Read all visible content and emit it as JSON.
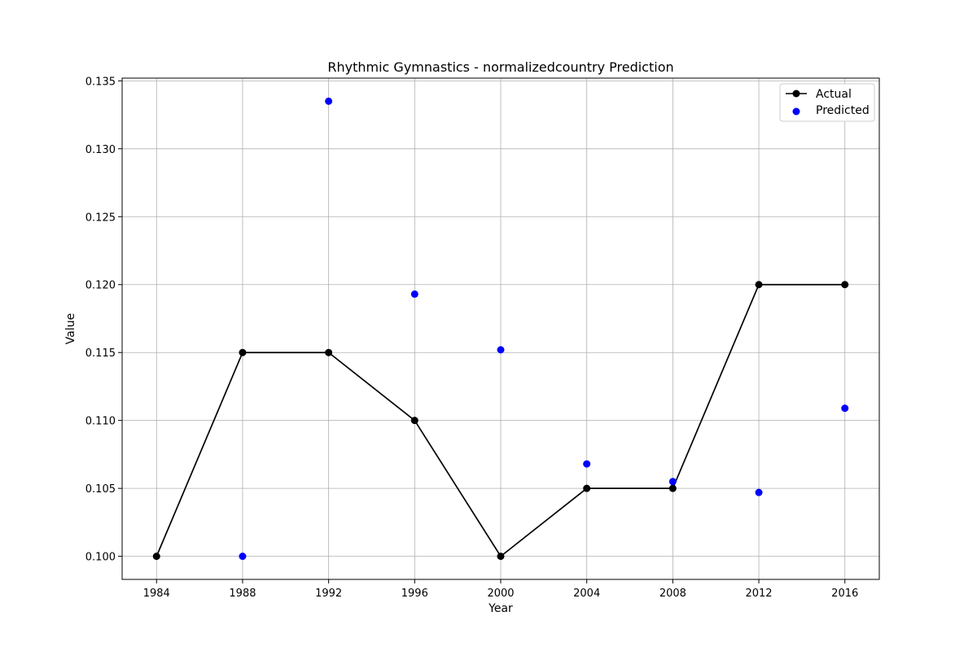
{
  "chart_data": {
    "type": "line",
    "title": "Rhythmic Gymnastics - normalizedcountry Prediction",
    "xlabel": "Year",
    "ylabel": "Value",
    "xlim": [
      1982.4,
      2017.6
    ],
    "ylim": [
      0.0983,
      0.1352
    ],
    "xticks": [
      1984,
      1988,
      1992,
      1996,
      2000,
      2004,
      2008,
      2012,
      2016
    ],
    "yticks": [
      0.1,
      0.105,
      0.11,
      0.115,
      0.12,
      0.125,
      0.13,
      0.135
    ],
    "ytick_labels": [
      "0.100",
      "0.105",
      "0.110",
      "0.115",
      "0.120",
      "0.125",
      "0.130",
      "0.135"
    ],
    "grid": true,
    "legend_position": "top-right",
    "series": [
      {
        "name": "Actual",
        "kind": "line-markers",
        "color": "#000000",
        "x": [
          1984,
          1988,
          1992,
          1996,
          2000,
          2004,
          2008,
          2012,
          2016
        ],
        "y": [
          0.1,
          0.115,
          0.115,
          0.11,
          0.1,
          0.105,
          0.105,
          0.12,
          0.12
        ]
      },
      {
        "name": "Predicted",
        "kind": "scatter",
        "color": "#0000ff",
        "x": [
          1988,
          1992,
          1996,
          2000,
          2004,
          2008,
          2012,
          2016
        ],
        "y": [
          0.1,
          0.1335,
          0.1193,
          0.1152,
          0.1068,
          0.1055,
          0.1047,
          0.1109
        ]
      }
    ]
  }
}
